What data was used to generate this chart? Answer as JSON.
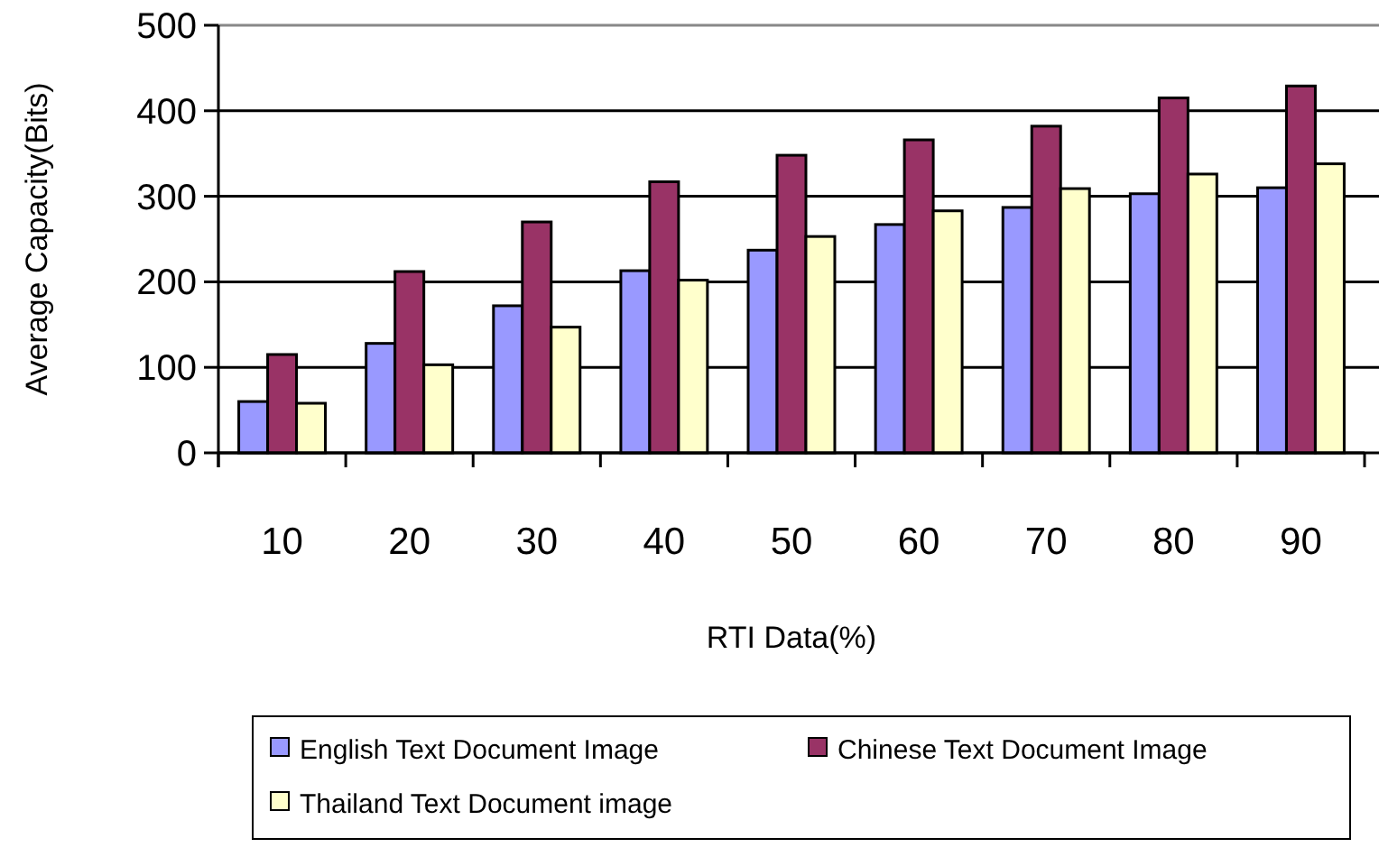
{
  "chart_data": {
    "type": "bar",
    "xlabel": "RTI Data(%)",
    "ylabel": "Average Capacity(Bits)",
    "categories": [
      "10",
      "20",
      "30",
      "40",
      "50",
      "60",
      "70",
      "80",
      "90"
    ],
    "series": [
      {
        "name": "English Text Document Image",
        "color": "#9999ff",
        "values": [
          60,
          128,
          172,
          213,
          237,
          267,
          287,
          303,
          310
        ]
      },
      {
        "name": "Chinese Text Document Image",
        "color": "#993366",
        "values": [
          115,
          212,
          270,
          317,
          348,
          366,
          382,
          415,
          429
        ]
      },
      {
        "name": "Thailand Text Document image",
        "color": "#ffffcc",
        "values": [
          58,
          103,
          147,
          202,
          253,
          283,
          309,
          326,
          338
        ]
      }
    ],
    "ylim": [
      0,
      500
    ],
    "yticks": [
      0,
      100,
      200,
      300,
      400,
      500
    ],
    "grid": "y",
    "legend": "bottom"
  }
}
